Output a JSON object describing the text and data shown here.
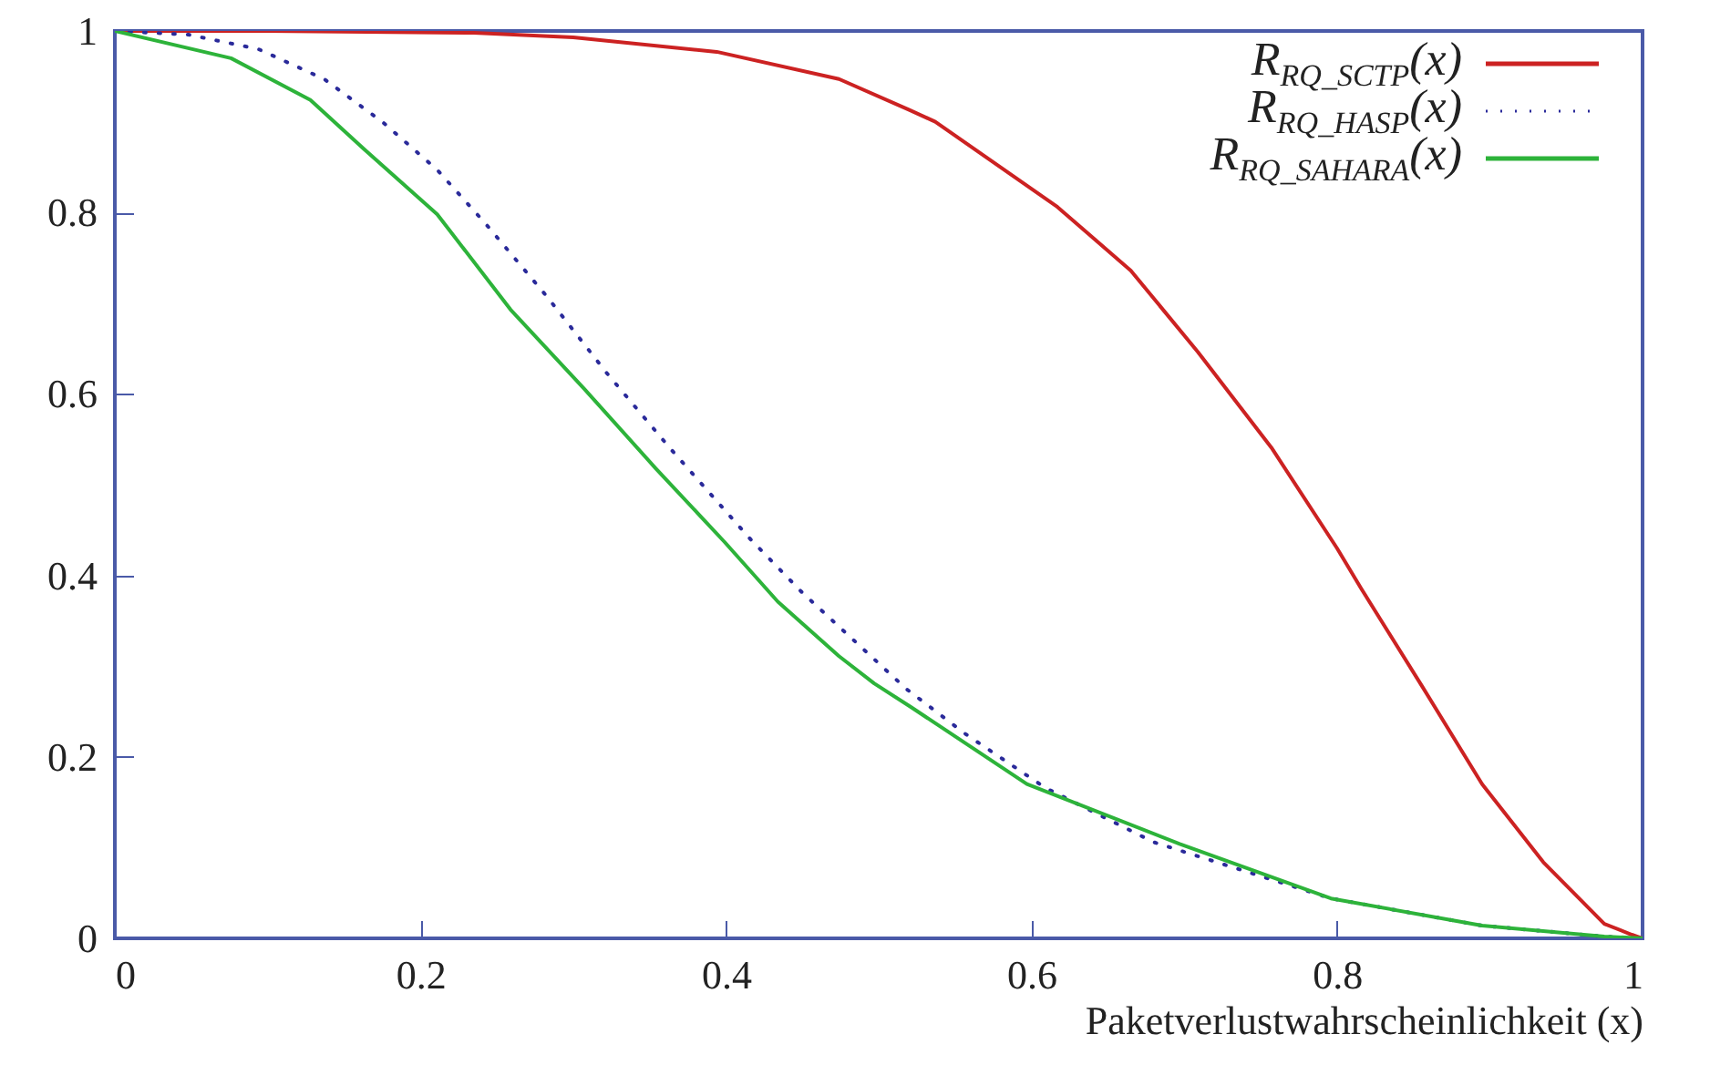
{
  "chart_data": {
    "type": "line",
    "xlabel": "Paketverlustwahrscheinlichkeit (x)",
    "xlim": [
      0,
      1
    ],
    "ylim": [
      0,
      1
    ],
    "xticks": [
      0,
      0.2,
      0.4,
      0.6,
      0.8,
      1
    ],
    "yticks": [
      0,
      0.2,
      0.4,
      0.6,
      0.8,
      1
    ],
    "grid": false,
    "legend": "top right",
    "marker": "none",
    "series": [
      {
        "name": "R$_{RQ_SCTP}$(x)",
        "color": "#cc2222",
        "line_style": "solid",
        "x": [
          0,
          0.1,
          0.235,
          0.3,
          0.394,
          0.474,
          0.52,
          0.537,
          0.617,
          0.665,
          0.709,
          0.757,
          0.8,
          0.816,
          0.856,
          0.895,
          0.935,
          0.975,
          0.993,
          1
        ],
        "values": [
          1,
          1,
          0.998,
          0.993,
          0.977,
          0.947,
          0.913,
          0.9,
          0.806,
          0.736,
          0.646,
          0.541,
          0.43,
          0.385,
          0.277,
          0.17,
          0.084,
          0.016,
          0.004,
          0
        ]
      },
      {
        "name": "R$_{RQ_HASP}$(x)",
        "color": "#2a2a9a",
        "line_style": "dotted",
        "x": [
          0,
          0.048,
          0.094,
          0.137,
          0.175,
          0.211,
          0.243,
          0.283,
          0.322,
          0.364,
          0.416,
          0.45,
          0.518,
          0.557,
          0.609,
          0.68,
          0.796,
          0.895,
          0.975,
          1
        ],
        "values": [
          1,
          0.996,
          0.98,
          0.947,
          0.9,
          0.847,
          0.787,
          0.707,
          0.623,
          0.539,
          0.44,
          0.381,
          0.275,
          0.225,
          0.166,
          0.106,
          0.044,
          0.014,
          0.002,
          0
        ]
      },
      {
        "name": "R$_{RQ_SAHARA}$(x)",
        "color": "#2db33a",
        "line_style": "solid",
        "x": [
          0,
          0.076,
          0.128,
          0.163,
          0.211,
          0.259,
          0.307,
          0.354,
          0.399,
          0.434,
          0.474,
          0.497,
          0.521,
          0.597,
          0.697,
          0.796,
          0.895,
          0.975,
          1
        ],
        "values": [
          1,
          0.97,
          0.924,
          0.87,
          0.798,
          0.693,
          0.606,
          0.518,
          0.437,
          0.371,
          0.311,
          0.281,
          0.255,
          0.17,
          0.104,
          0.044,
          0.014,
          0.002,
          0
        ]
      }
    ]
  }
}
